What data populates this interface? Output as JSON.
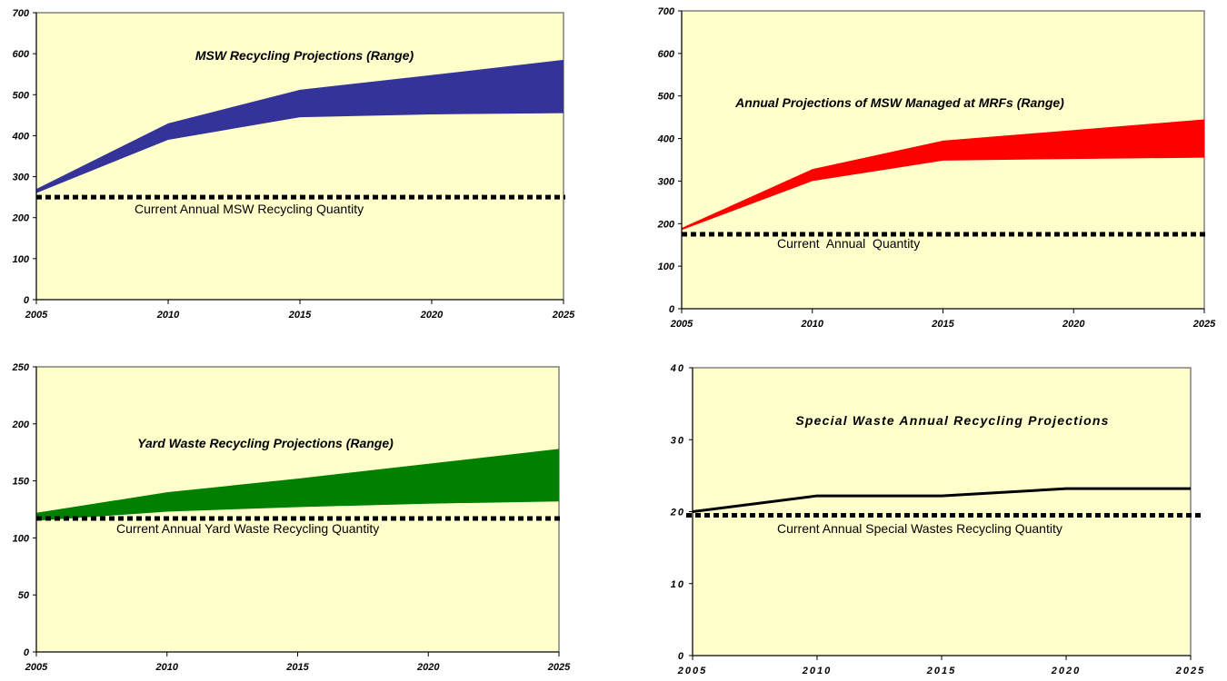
{
  "chart_data": [
    {
      "type": "area",
      "title": "MSW Recycling Projections (Range)",
      "x": [
        2005,
        2010,
        2015,
        2020,
        2025
      ],
      "series": [
        {
          "role": "range-low",
          "values": [
            260,
            390,
            445,
            452,
            455
          ]
        },
        {
          "role": "range-high",
          "values": [
            270,
            430,
            512,
            548,
            585
          ]
        }
      ],
      "fill_color": "#333399",
      "reference": {
        "label": "Current Annual MSW Recycling Quantity",
        "value": 250
      },
      "ylim": [
        0,
        700
      ],
      "yticks": [
        0,
        100,
        200,
        300,
        400,
        500,
        600,
        700
      ],
      "xticks": [
        2005,
        2010,
        2015,
        2020,
        2025
      ],
      "grid": false
    },
    {
      "type": "area",
      "title": "Annual Projections of MSW Managed at MRFs (Range)",
      "x": [
        2005,
        2010,
        2015,
        2020,
        2025
      ],
      "series": [
        {
          "role": "range-low",
          "values": [
            185,
            300,
            348,
            352,
            355
          ]
        },
        {
          "role": "range-high",
          "values": [
            190,
            328,
            395,
            420,
            445
          ]
        }
      ],
      "fill_color": "#ff0000",
      "reference": {
        "label": "Current  Annual  Quantity",
        "value": 175
      },
      "ylim": [
        0,
        700
      ],
      "yticks": [
        0,
        100,
        200,
        300,
        400,
        500,
        600,
        700
      ],
      "xticks": [
        2005,
        2010,
        2015,
        2020,
        2025
      ],
      "grid": false
    },
    {
      "type": "area",
      "title": "Yard Waste Recycling Projections (Range)",
      "x": [
        2005,
        2010,
        2015,
        2020,
        2025
      ],
      "series": [
        {
          "role": "range-low",
          "values": [
            115,
            123,
            127,
            130,
            132
          ]
        },
        {
          "role": "range-high",
          "values": [
            122,
            140,
            152,
            165,
            178
          ]
        }
      ],
      "fill_color": "#008000",
      "reference": {
        "label": "Current Annual Yard Waste Recycling Quantity",
        "value": 117
      },
      "ylim": [
        0,
        250
      ],
      "yticks": [
        0,
        50,
        100,
        150,
        200,
        250
      ],
      "xticks": [
        2005,
        2010,
        2015,
        2020,
        2025
      ],
      "grid": false
    },
    {
      "type": "line",
      "title": "Special Waste Annual Recycling Projections",
      "x": [
        2005,
        2010,
        2015,
        2020,
        2025
      ],
      "series": [
        {
          "values": [
            20,
            22.2,
            22.2,
            23.2,
            23.2
          ]
        }
      ],
      "line_color": "#000000",
      "reference": {
        "label": "Current Annual Special Wastes Recycling Quantity",
        "value": 19.5
      },
      "ylim": [
        0,
        40
      ],
      "yticks": [
        0,
        10,
        20,
        30,
        40
      ],
      "xticks": [
        2005,
        2010,
        2015,
        2020,
        2025
      ],
      "grid": false
    }
  ]
}
